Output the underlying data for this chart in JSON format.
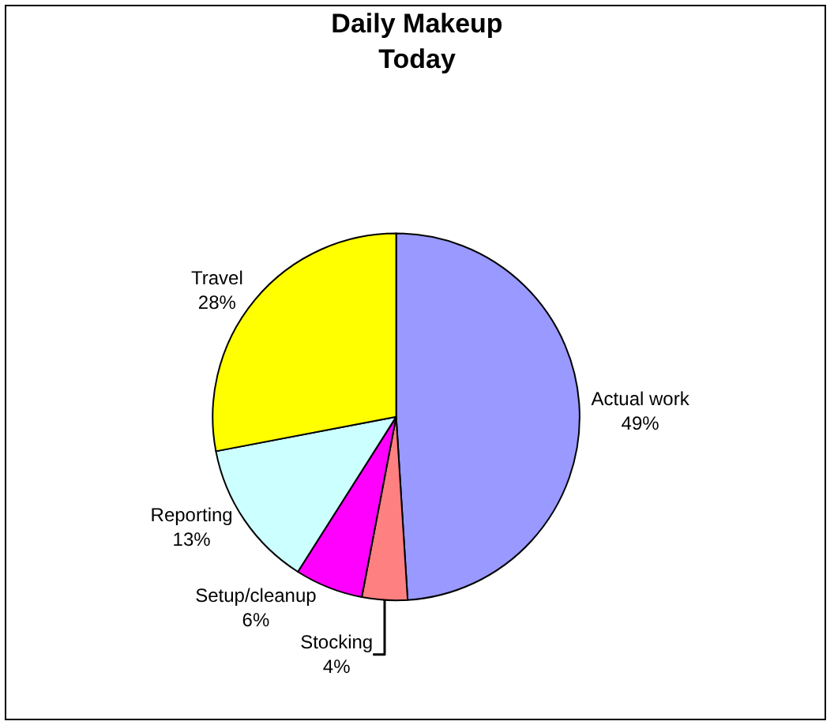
{
  "chart_data": {
    "type": "pie",
    "title": "Daily Makeup\nToday",
    "categories": [
      "Actual work",
      "Stocking",
      "Setup/cleanup",
      "Reporting",
      "Travel"
    ],
    "values": [
      49,
      4,
      6,
      13,
      28
    ],
    "value_labels": [
      "49%",
      "4%",
      "6%",
      "13%",
      "28%"
    ],
    "colors": [
      "#9999ff",
      "#ff8080",
      "#ff00ff",
      "#ccffff",
      "#ffff00"
    ],
    "legend": false
  }
}
